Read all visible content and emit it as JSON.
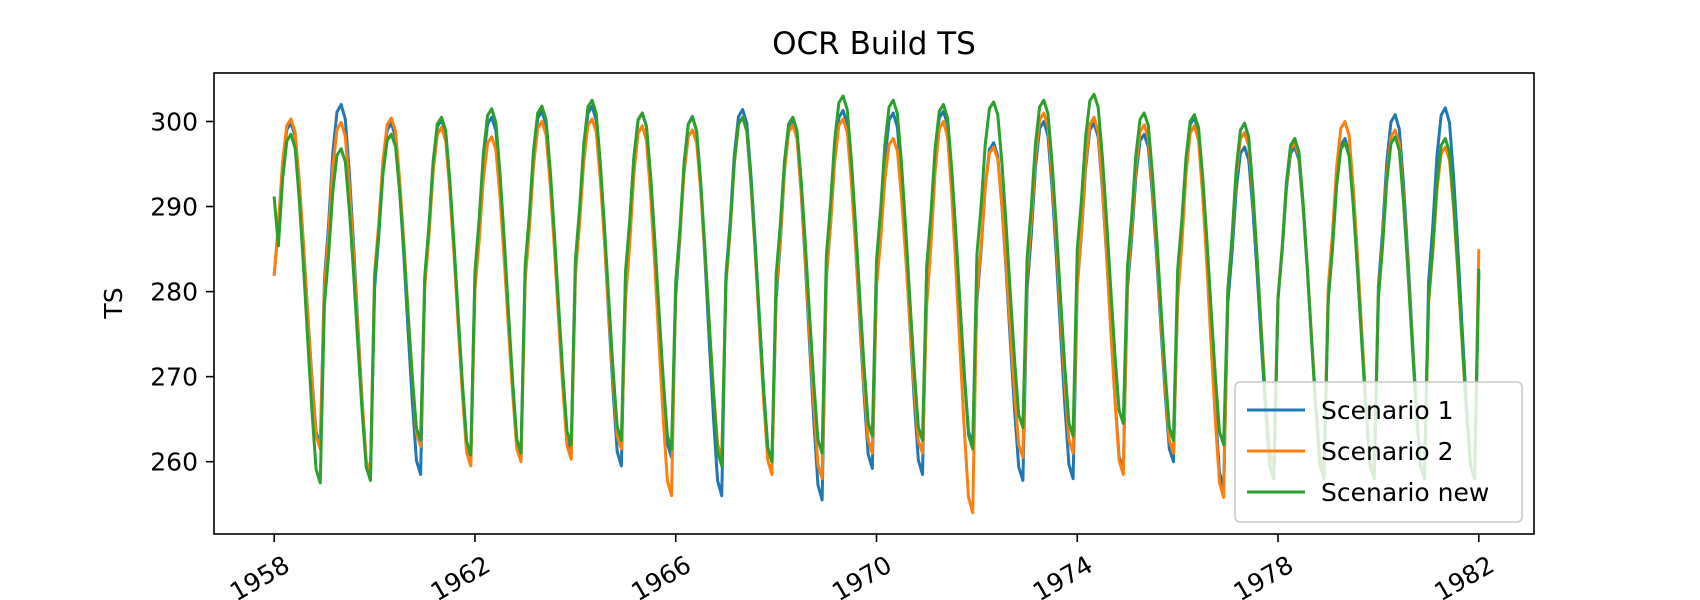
{
  "chart_data": {
    "type": "line",
    "title": "OCR Build TS",
    "xlabel": "",
    "ylabel": "TS",
    "xlim": [
      1956.8,
      1983.1
    ],
    "ylim": [
      251.5,
      305.7
    ],
    "xticks": [
      1958,
      1962,
      1966,
      1970,
      1974,
      1978,
      1982
    ],
    "yticks": [
      260,
      270,
      280,
      290,
      300
    ],
    "grid": false,
    "legend_position": "bottom-right",
    "x_start": 1958.0,
    "x_step_years": 0.083333,
    "series": [
      {
        "name": "Scenario 1",
        "color": "#1f77b4",
        "maxima": [
          299.8,
          302.0,
          299.8,
          300.2,
          300.5,
          301.2,
          301.8,
          301.0,
          300.6,
          301.4,
          300.0,
          301.3,
          301.0,
          301.2,
          297.5,
          300.0,
          299.8,
          298.5,
          300.5,
          297.0,
          297.0,
          298.0,
          300.8,
          301.6
        ],
        "minima": [
          262.0,
          258.0,
          258.5,
          260.5,
          260.5,
          261.0,
          259.5,
          260.5,
          256.0,
          260.0,
          255.5,
          259.2,
          258.5,
          262.0,
          257.8,
          258.0,
          259.0,
          260.0,
          257.0,
          258.0,
          259.0,
          258.0,
          258.0,
          258.0
        ],
        "end": 282.0
      },
      {
        "name": "Scenario 2",
        "color": "#ff7f0e",
        "maxima": [
          300.3,
          299.9,
          300.4,
          299.3,
          298.2,
          300.0,
          300.3,
          299.5,
          299.0,
          300.5,
          299.6,
          300.3,
          298.0,
          300.0,
          297.0,
          301.0,
          300.5,
          299.6,
          299.5,
          298.7,
          297.5,
          300.0,
          299.0,
          297.0
        ],
        "minima": [
          261.5,
          258.5,
          261.8,
          259.5,
          260.0,
          260.3,
          261.5,
          256.0,
          260.5,
          258.5,
          258.0,
          261.0,
          261.0,
          254.0,
          260.5,
          261.0,
          258.5,
          261.0,
          255.8,
          259.5,
          259.0,
          258.5,
          258.0,
          258.0
        ],
        "end": 284.8
      },
      {
        "name": "Scenario new",
        "color": "#2ca02c",
        "maxima": [
          298.5,
          296.8,
          298.5,
          300.5,
          301.5,
          301.8,
          302.5,
          301.0,
          300.5,
          300.5,
          300.5,
          303.0,
          302.5,
          302.0,
          302.3,
          302.5,
          303.2,
          301.0,
          300.8,
          299.8,
          298.0,
          297.5,
          298.2,
          298.0
        ],
        "minima": [
          257.5,
          257.8,
          262.5,
          260.8,
          261.0,
          262.0,
          262.5,
          261.5,
          259.5,
          260.0,
          261.0,
          263.0,
          262.5,
          261.5,
          264.0,
          263.0,
          264.5,
          262.5,
          262.0,
          258.0,
          258.0,
          258.0,
          258.0,
          258.0
        ],
        "start": 291.0,
        "end": 282.5
      }
    ]
  }
}
